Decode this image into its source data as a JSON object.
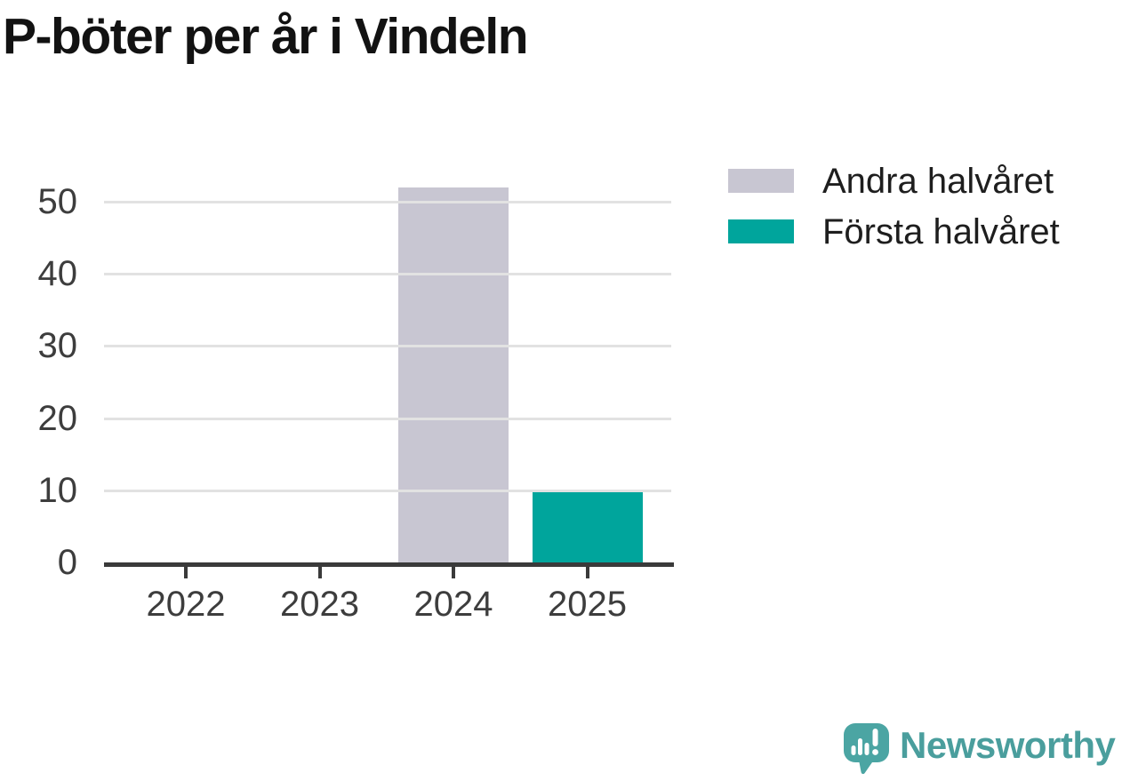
{
  "title": "P-böter per år i Vindeln",
  "chart_data": {
    "type": "bar",
    "title": "P-böter per år i Vindeln",
    "categories": [
      "2022",
      "2023",
      "2024",
      "2025"
    ],
    "series": [
      {
        "name": "Andra halvåret",
        "color": "#c8c6d2",
        "values": [
          0,
          0,
          52,
          0
        ]
      },
      {
        "name": "Första halvåret",
        "color": "#00a59c",
        "values": [
          0,
          0,
          0,
          10
        ]
      }
    ],
    "xlabel": "",
    "ylabel": "",
    "ylim": [
      0,
      55
    ],
    "yticks": [
      0,
      10,
      20,
      30,
      40,
      50
    ],
    "grid": true,
    "legend_position": "top-right"
  },
  "colors": {
    "background": "#ffffff",
    "axis": "#3a3a3a",
    "gridline": "#e2e2e2",
    "tick_text": "#3d3d3d",
    "title_text": "#121212",
    "legend_text": "#1e1e1e"
  },
  "logo": {
    "text": "Newsworthy",
    "text_color": "#4a9e9d",
    "icon": "newsworthy-speech-bubble-barchart-icon",
    "icon_color": "#4ba5a3",
    "icon_glyph_color": "#ffffff"
  }
}
